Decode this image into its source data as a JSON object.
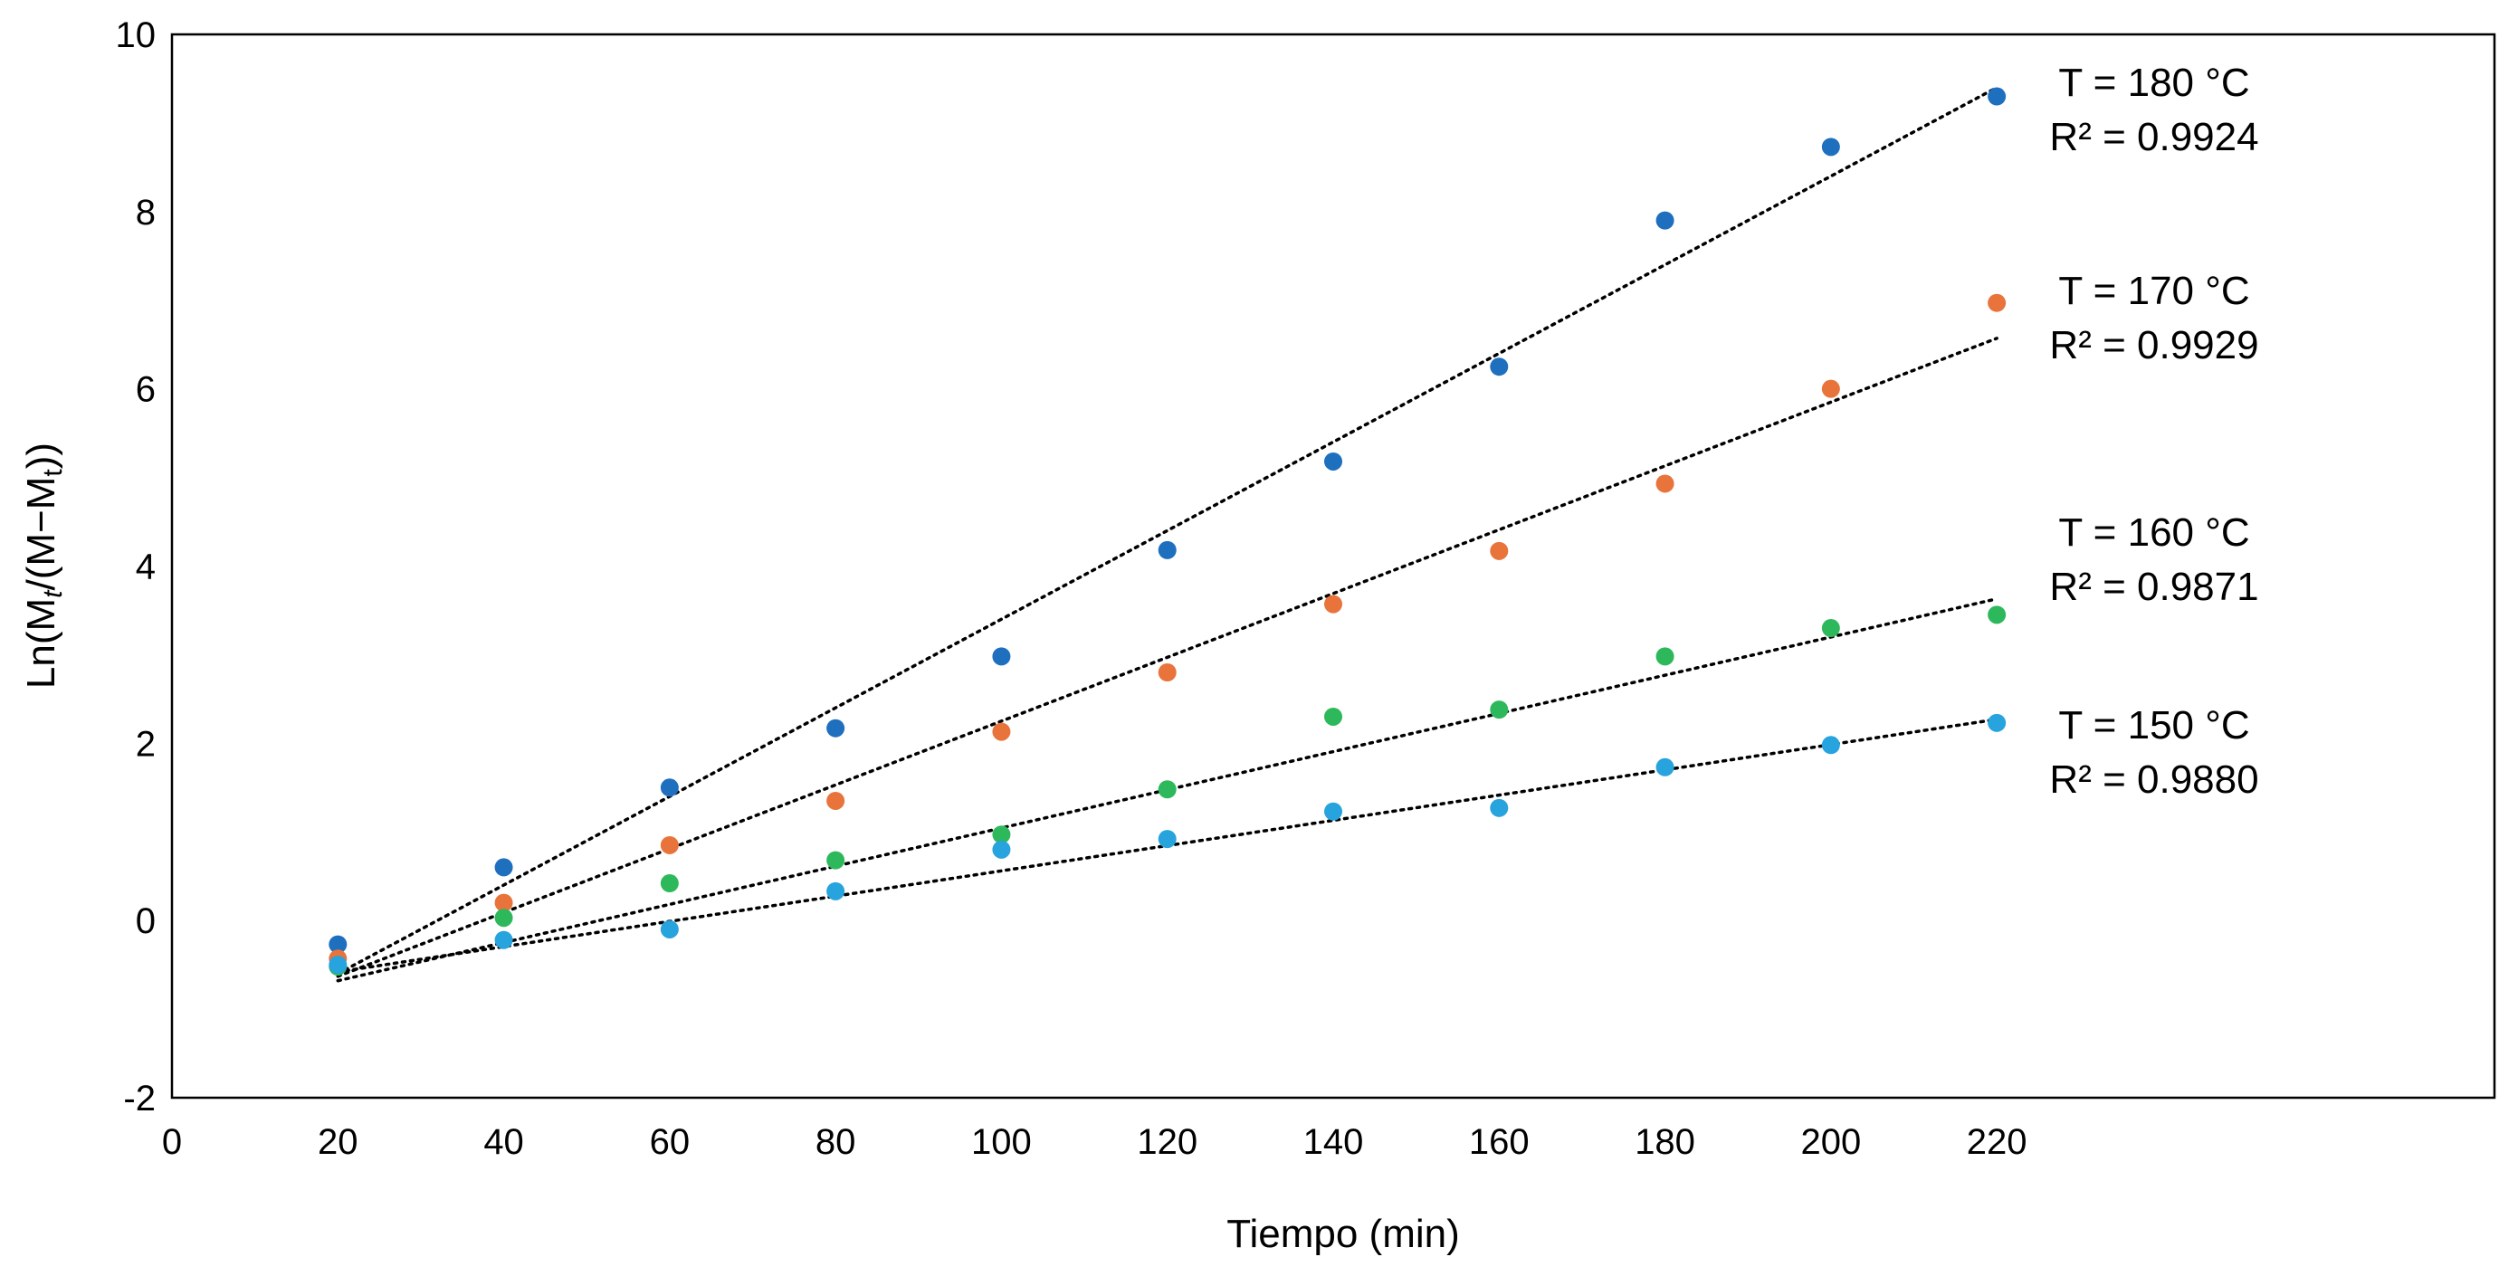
{
  "chart_data": {
    "type": "scatter",
    "title": "",
    "xlabel": "Tiempo (min)",
    "ylabel_parts": [
      "Ln(M",
      "t",
      "/(M−M",
      "t",
      "))"
    ],
    "xlim": [
      0,
      280
    ],
    "ylim": [
      -2,
      10
    ],
    "xticks": [
      0,
      20,
      40,
      60,
      80,
      100,
      120,
      140,
      160,
      180,
      200,
      220
    ],
    "yticks": [
      -2,
      0,
      2,
      4,
      6,
      8,
      10
    ],
    "trendline_style": "dotted",
    "series": [
      {
        "name": "T = 180 °C",
        "r2": "R² = 0.9924",
        "color": "#1f6fbf",
        "x": [
          20,
          40,
          60,
          80,
          100,
          120,
          140,
          160,
          180,
          200,
          220
        ],
        "y": [
          -0.27,
          0.6,
          1.5,
          2.17,
          2.98,
          4.18,
          5.18,
          6.25,
          7.9,
          8.73,
          9.3
        ],
        "trend": [
          [
            20,
            -0.6
          ],
          [
            220,
            9.4
          ]
        ]
      },
      {
        "name": "T = 170 °C",
        "r2": "R² = 0.9929",
        "color": "#e8743b",
        "x": [
          20,
          40,
          60,
          80,
          100,
          120,
          140,
          160,
          180,
          200,
          220
        ],
        "y": [
          -0.43,
          0.2,
          0.85,
          1.35,
          2.13,
          2.8,
          3.57,
          4.17,
          4.93,
          6.0,
          6.97
        ],
        "trend": [
          [
            20,
            -0.63
          ],
          [
            220,
            6.57
          ]
        ]
      },
      {
        "name": "T = 160 °C",
        "r2": "R² = 0.9871",
        "color": "#2eb85c",
        "x": [
          20,
          40,
          60,
          80,
          100,
          120,
          140,
          160,
          180,
          200,
          220
        ],
        "y": [
          -0.52,
          0.03,
          0.42,
          0.68,
          0.97,
          1.48,
          2.3,
          2.38,
          2.98,
          3.3,
          3.45
        ],
        "trend": [
          [
            20,
            -0.68
          ],
          [
            220,
            3.63
          ]
        ]
      },
      {
        "name": "T = 150 °C",
        "r2": "R² = 0.9880",
        "color": "#27a3dd",
        "x": [
          20,
          40,
          60,
          80,
          100,
          120,
          140,
          160,
          180,
          200,
          220
        ],
        "y": [
          -0.5,
          -0.22,
          -0.1,
          0.33,
          0.8,
          0.92,
          1.23,
          1.27,
          1.73,
          1.98,
          2.23
        ],
        "trend": [
          [
            20,
            -0.58
          ],
          [
            220,
            2.27
          ]
        ]
      }
    ]
  }
}
